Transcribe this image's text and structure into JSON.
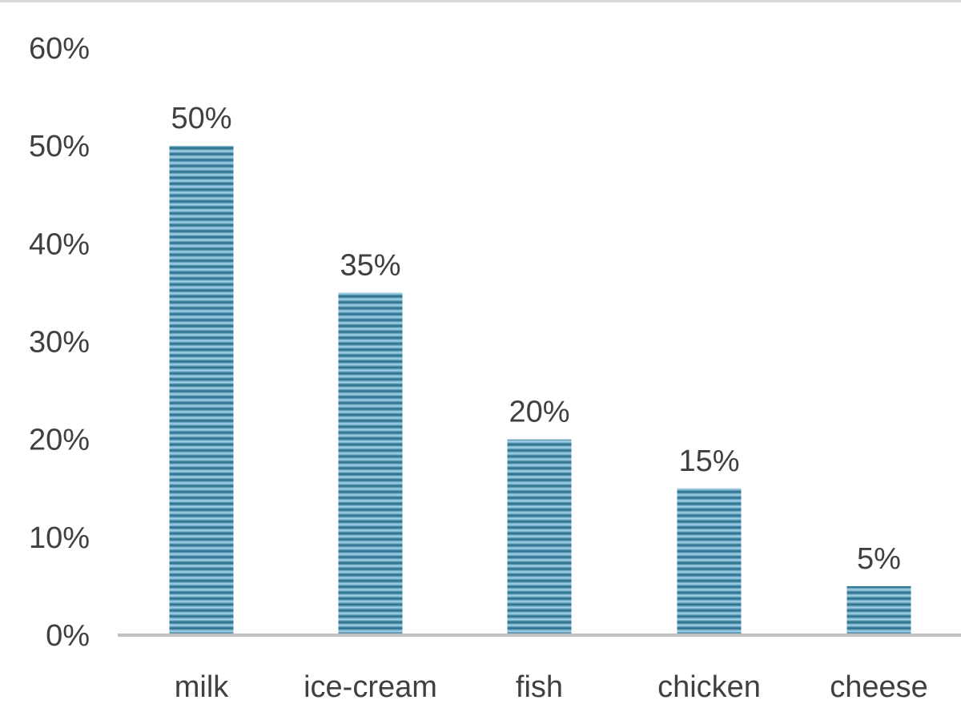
{
  "chart_data": {
    "type": "bar",
    "categories": [
      "milk",
      "ice-cream",
      "fish",
      "chicken",
      "cheese"
    ],
    "values": [
      50,
      35,
      20,
      15,
      5
    ],
    "data_labels": [
      "50%",
      "35%",
      "20%",
      "15%",
      "5%"
    ],
    "y_ticks": [
      0,
      10,
      20,
      30,
      40,
      50,
      60
    ],
    "y_tick_labels": [
      "0%",
      "10%",
      "20%",
      "30%",
      "40%",
      "50%",
      "60%"
    ],
    "ylim": [
      0,
      60
    ],
    "title": "",
    "xlabel": "",
    "ylabel": "",
    "grid": false,
    "legend": "none",
    "colors": {
      "bar_dark": "#1f6685",
      "bar_light": "#a9d7ee",
      "axis": "#c0c0c0",
      "text": "#404040",
      "frame": "#d9d9d9"
    }
  }
}
